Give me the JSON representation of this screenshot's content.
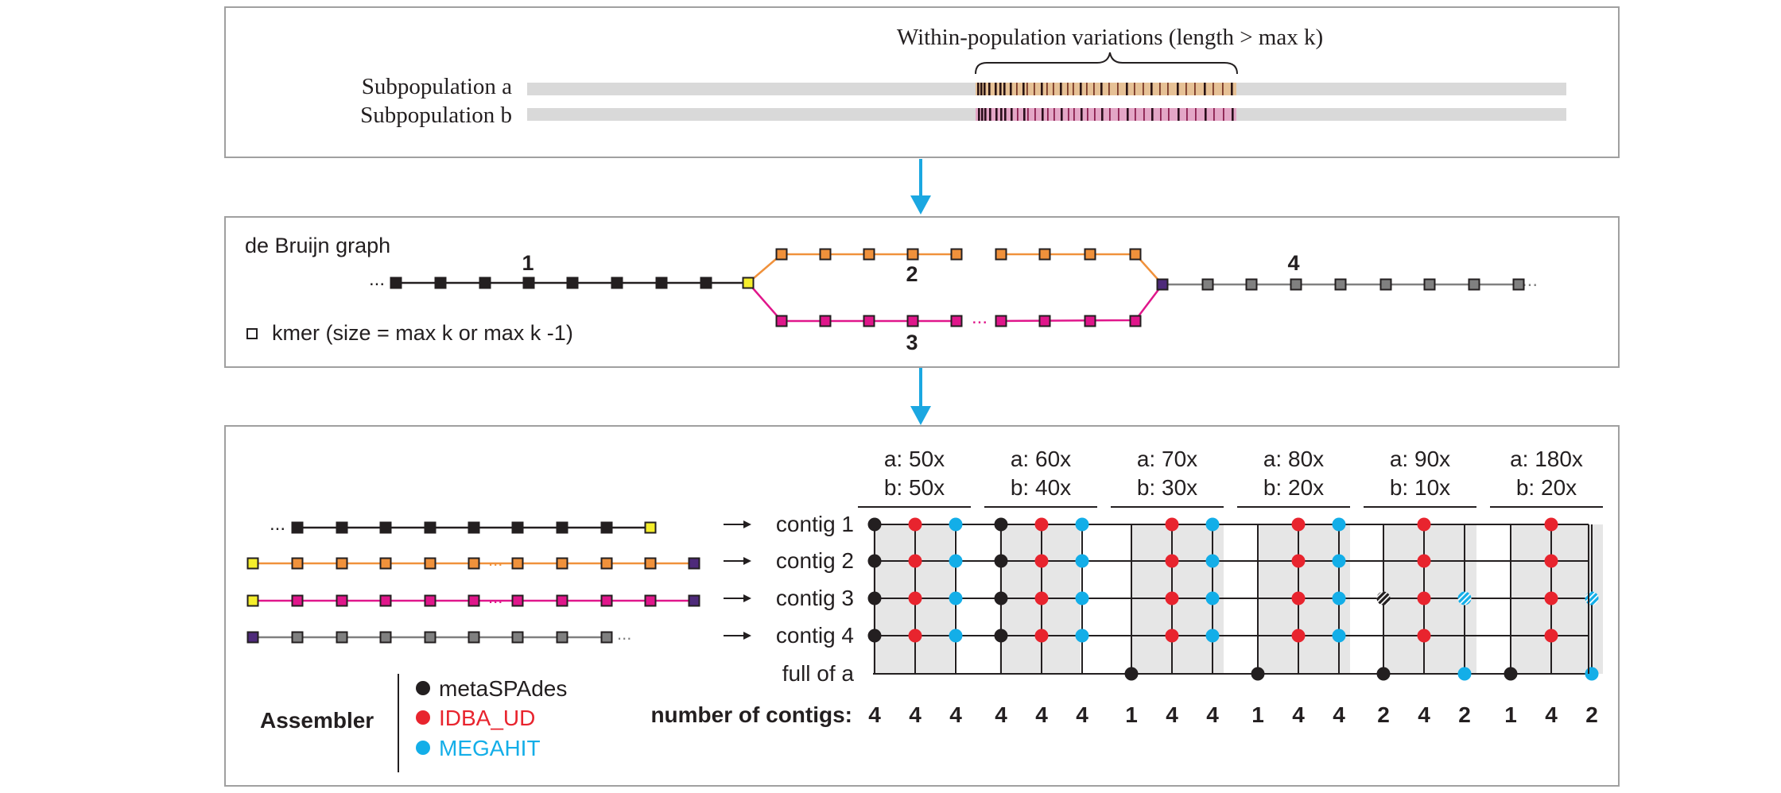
{
  "panel1": {
    "title": "Within-population variations (length > max k)",
    "label_a": "Subpopulation a",
    "label_b": "Subpopulation b"
  },
  "panel2": {
    "title": "de Bruijn graph",
    "path_numbers": [
      "1",
      "2",
      "3",
      "4"
    ],
    "ellipsis": "...",
    "legend": "kmer (size = max k or max k -1)"
  },
  "panel3": {
    "contig_labels": [
      "contig 1",
      "contig 2",
      "contig 3",
      "contig 4",
      "full of a"
    ],
    "arrow": "→",
    "coverages": [
      {
        "a": "a: 50x",
        "b": "b: 50x"
      },
      {
        "a": "a: 60x",
        "b": "b: 40x"
      },
      {
        "a": "a: 70x",
        "b": "b: 30x"
      },
      {
        "a": "a: 80x",
        "b": "b: 20x"
      },
      {
        "a": "a: 90x",
        "b": "b: 10x"
      },
      {
        "a": "a: 180x",
        "b": "b: 20x"
      }
    ],
    "number_label": "number of contigs:",
    "numbers": [
      [
        "4",
        "4",
        "4"
      ],
      [
        "4",
        "4",
        "4"
      ],
      [
        "1",
        "4",
        "4"
      ],
      [
        "1",
        "4",
        "4"
      ],
      [
        "2",
        "4",
        "2"
      ],
      [
        "1",
        "4",
        "2"
      ]
    ],
    "legend_title": "Assembler",
    "assemblers": [
      {
        "name": "metaSPAdes",
        "color": "#231f20"
      },
      {
        "name": "IDBA_UD",
        "color": "#e8242e"
      },
      {
        "name": "MEGAHIT",
        "color": "#13aee8"
      }
    ]
  },
  "colors": {
    "arrow": "#1ba7e1",
    "orange": "#f0913b",
    "magenta": "#e0168b",
    "yellow": "#f5ee2c",
    "purple": "#4e2a7a",
    "grey": "#808080",
    "dark": "#231f20"
  }
}
